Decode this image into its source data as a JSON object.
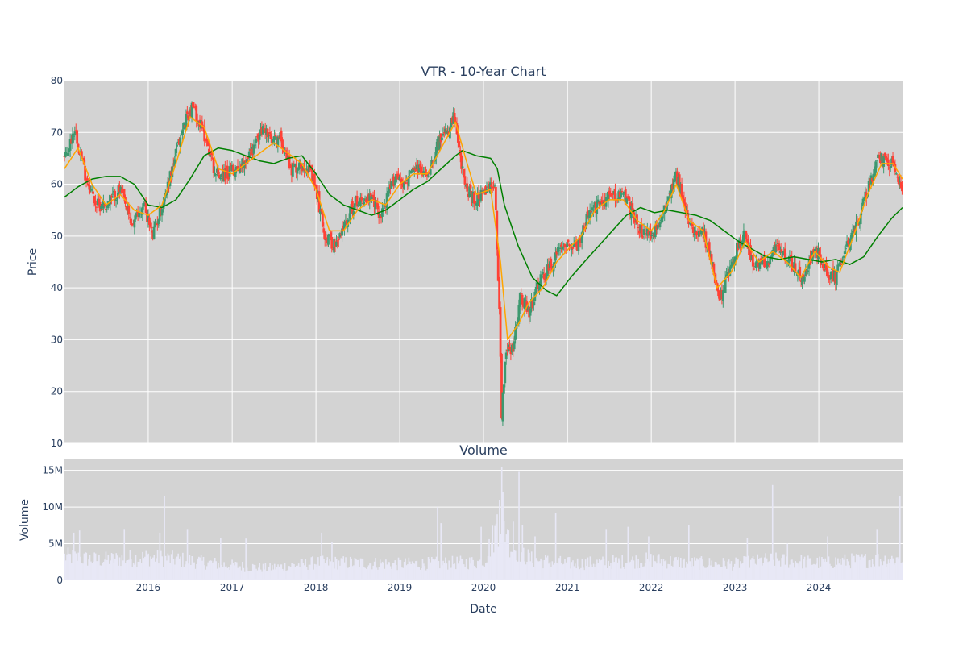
{
  "chart_data": [
    {
      "type": "candlestick",
      "title": "VTR - 10-Year Chart",
      "xlabel": "",
      "ylabel": "Price",
      "ylim": [
        10,
        80
      ],
      "yticks": [
        10,
        20,
        30,
        40,
        50,
        60,
        70,
        80
      ],
      "xlim": [
        "2015-01-01",
        "2024-12-31"
      ],
      "grid": true,
      "plot_bg": "#d3d3d3",
      "colors": {
        "up": "#3d9970",
        "down": "#ff4136",
        "ma_short": "#ffa500",
        "ma_long": "#008000"
      },
      "close_path": [
        [
          "2015-01-05",
          65
        ],
        [
          "2015-02-15",
          71
        ],
        [
          "2015-04-01",
          62
        ],
        [
          "2015-05-20",
          56
        ],
        [
          "2015-07-01",
          56
        ],
        [
          "2015-09-01",
          59
        ],
        [
          "2015-10-20",
          52
        ],
        [
          "2015-12-15",
          56
        ],
        [
          "2016-01-20",
          50
        ],
        [
          "2016-03-15",
          58
        ],
        [
          "2016-05-01",
          66
        ],
        [
          "2016-06-15",
          73
        ],
        [
          "2016-07-15",
          75
        ],
        [
          "2016-08-20",
          71
        ],
        [
          "2016-09-15",
          68
        ],
        [
          "2016-10-20",
          62
        ],
        [
          "2016-12-15",
          62
        ],
        [
          "2017-02-15",
          64
        ],
        [
          "2017-04-01",
          67
        ],
        [
          "2017-05-20",
          71
        ],
        [
          "2017-06-20",
          68
        ],
        [
          "2017-08-01",
          69
        ],
        [
          "2017-09-15",
          63
        ],
        [
          "2017-11-20",
          64
        ],
        [
          "2018-01-01",
          59
        ],
        [
          "2018-02-10",
          50
        ],
        [
          "2018-04-01",
          48
        ],
        [
          "2018-05-20",
          54
        ],
        [
          "2018-07-01",
          57
        ],
        [
          "2018-09-01",
          57
        ],
        [
          "2018-10-10",
          54
        ],
        [
          "2018-12-15",
          62
        ],
        [
          "2019-01-20",
          60
        ],
        [
          "2019-03-15",
          63
        ],
        [
          "2019-05-01",
          62
        ],
        [
          "2019-06-15",
          68
        ],
        [
          "2019-08-01",
          70
        ],
        [
          "2019-08-25",
          73
        ],
        [
          "2019-10-10",
          60
        ],
        [
          "2019-11-20",
          57
        ],
        [
          "2020-01-01",
          58
        ],
        [
          "2020-02-20",
          60
        ],
        [
          "2020-03-10",
          36
        ],
        [
          "2020-03-20",
          16
        ],
        [
          "2020-04-10",
          29
        ],
        [
          "2020-05-10",
          28
        ],
        [
          "2020-06-10",
          39
        ],
        [
          "2020-07-15",
          35
        ],
        [
          "2020-09-01",
          41
        ],
        [
          "2020-11-01",
          45
        ],
        [
          "2020-12-10",
          49
        ],
        [
          "2021-02-15",
          48
        ],
        [
          "2021-04-01",
          54
        ],
        [
          "2021-05-15",
          56
        ],
        [
          "2021-07-15",
          58
        ],
        [
          "2021-09-01",
          58
        ],
        [
          "2021-10-15",
          54
        ],
        [
          "2021-12-01",
          50
        ],
        [
          "2022-02-01",
          51
        ],
        [
          "2022-03-15",
          58
        ],
        [
          "2022-04-20",
          62
        ],
        [
          "2022-06-15",
          52
        ],
        [
          "2022-08-15",
          51
        ],
        [
          "2022-10-01",
          43
        ],
        [
          "2022-10-25",
          37
        ],
        [
          "2022-12-15",
          45
        ],
        [
          "2023-02-15",
          51
        ],
        [
          "2023-03-20",
          44
        ],
        [
          "2023-05-15",
          45
        ],
        [
          "2023-07-15",
          48
        ],
        [
          "2023-09-15",
          44
        ],
        [
          "2023-10-25",
          41
        ],
        [
          "2023-12-15",
          48
        ],
        [
          "2024-02-01",
          43
        ],
        [
          "2024-03-15",
          42
        ],
        [
          "2024-04-15",
          46
        ],
        [
          "2024-06-15",
          52
        ],
        [
          "2024-08-15",
          61
        ],
        [
          "2024-09-20",
          65
        ],
        [
          "2024-11-15",
          64
        ],
        [
          "2024-12-31",
          58
        ]
      ],
      "ma_short_path": [
        [
          "2015-01-01",
          63
        ],
        [
          "2015-03-01",
          67
        ],
        [
          "2015-05-01",
          60
        ],
        [
          "2015-07-01",
          56
        ],
        [
          "2015-09-01",
          58
        ],
        [
          "2015-11-01",
          55
        ],
        [
          "2016-01-01",
          54
        ],
        [
          "2016-03-01",
          56
        ],
        [
          "2016-05-01",
          64
        ],
        [
          "2016-07-01",
          73
        ],
        [
          "2016-09-01",
          71
        ],
        [
          "2016-11-01",
          63
        ],
        [
          "2017-01-01",
          62
        ],
        [
          "2017-03-01",
          64
        ],
        [
          "2017-05-01",
          66
        ],
        [
          "2017-07-01",
          68
        ],
        [
          "2017-09-01",
          66
        ],
        [
          "2017-11-01",
          64
        ],
        [
          "2018-01-01",
          59
        ],
        [
          "2018-03-01",
          51
        ],
        [
          "2018-05-01",
          51
        ],
        [
          "2018-07-01",
          55
        ],
        [
          "2018-09-01",
          57
        ],
        [
          "2018-11-01",
          56
        ],
        [
          "2019-01-01",
          60
        ],
        [
          "2019-03-01",
          62
        ],
        [
          "2019-05-01",
          62
        ],
        [
          "2019-07-01",
          67
        ],
        [
          "2019-09-01",
          72
        ],
        [
          "2019-10-15",
          65
        ],
        [
          "2019-12-01",
          58
        ],
        [
          "2020-02-01",
          59
        ],
        [
          "2020-03-15",
          45
        ],
        [
          "2020-04-15",
          30
        ],
        [
          "2020-06-01",
          33
        ],
        [
          "2020-07-15",
          37
        ],
        [
          "2020-09-15",
          40
        ],
        [
          "2020-11-15",
          45
        ],
        [
          "2021-01-15",
          48
        ],
        [
          "2021-03-01",
          50
        ],
        [
          "2021-05-01",
          55
        ],
        [
          "2021-07-01",
          57
        ],
        [
          "2021-09-01",
          57
        ],
        [
          "2021-11-01",
          53
        ],
        [
          "2022-01-01",
          51
        ],
        [
          "2022-03-01",
          55
        ],
        [
          "2022-04-20",
          60
        ],
        [
          "2022-06-15",
          53
        ],
        [
          "2022-08-15",
          51
        ],
        [
          "2022-10-15",
          40
        ],
        [
          "2022-12-15",
          43
        ],
        [
          "2023-02-15",
          49
        ],
        [
          "2023-04-15",
          45
        ],
        [
          "2023-06-15",
          47
        ],
        [
          "2023-08-15",
          45
        ],
        [
          "2023-10-15",
          42
        ],
        [
          "2023-12-15",
          47
        ],
        [
          "2024-02-15",
          44
        ],
        [
          "2024-04-01",
          43
        ],
        [
          "2024-06-01",
          50
        ],
        [
          "2024-08-01",
          58
        ],
        [
          "2024-10-01",
          64
        ],
        [
          "2024-11-20",
          64
        ],
        [
          "2024-12-31",
          61
        ]
      ],
      "ma_long_path": [
        [
          "2015-01-01",
          57.5
        ],
        [
          "2015-03-01",
          59.5
        ],
        [
          "2015-05-01",
          61
        ],
        [
          "2015-07-01",
          61.5
        ],
        [
          "2015-09-01",
          61.5
        ],
        [
          "2015-11-01",
          60
        ],
        [
          "2016-01-01",
          56
        ],
        [
          "2016-03-01",
          55.5
        ],
        [
          "2016-05-01",
          57
        ],
        [
          "2016-07-01",
          61
        ],
        [
          "2016-09-01",
          65.5
        ],
        [
          "2016-11-01",
          67
        ],
        [
          "2017-01-01",
          66.5
        ],
        [
          "2017-03-01",
          65.5
        ],
        [
          "2017-05-01",
          64.5
        ],
        [
          "2017-07-01",
          64
        ],
        [
          "2017-09-01",
          65
        ],
        [
          "2017-11-01",
          65.5
        ],
        [
          "2018-01-01",
          62
        ],
        [
          "2018-03-01",
          58
        ],
        [
          "2018-05-01",
          56
        ],
        [
          "2018-07-01",
          55
        ],
        [
          "2018-09-01",
          54
        ],
        [
          "2018-11-01",
          55
        ],
        [
          "2019-01-01",
          57
        ],
        [
          "2019-03-01",
          59
        ],
        [
          "2019-05-01",
          60.5
        ],
        [
          "2019-07-01",
          63
        ],
        [
          "2019-09-01",
          65.5
        ],
        [
          "2019-10-01",
          66.5
        ],
        [
          "2019-12-01",
          65.5
        ],
        [
          "2020-02-01",
          65
        ],
        [
          "2020-03-01",
          63
        ],
        [
          "2020-04-01",
          56
        ],
        [
          "2020-06-01",
          48
        ],
        [
          "2020-08-01",
          42
        ],
        [
          "2020-10-01",
          39.5
        ],
        [
          "2020-11-15",
          38.5
        ],
        [
          "2021-01-15",
          42
        ],
        [
          "2021-03-15",
          45
        ],
        [
          "2021-05-15",
          48
        ],
        [
          "2021-07-15",
          51
        ],
        [
          "2021-09-15",
          54
        ],
        [
          "2021-11-15",
          55.5
        ],
        [
          "2022-01-15",
          54.5
        ],
        [
          "2022-03-15",
          55
        ],
        [
          "2022-05-15",
          54.5
        ],
        [
          "2022-07-15",
          54
        ],
        [
          "2022-09-15",
          53
        ],
        [
          "2022-11-15",
          51
        ],
        [
          "2023-01-15",
          49
        ],
        [
          "2023-03-15",
          47.5
        ],
        [
          "2023-05-15",
          46
        ],
        [
          "2023-07-15",
          45.5
        ],
        [
          "2023-09-15",
          46
        ],
        [
          "2023-11-15",
          45.5
        ],
        [
          "2024-01-15",
          45
        ],
        [
          "2024-03-15",
          45.5
        ],
        [
          "2024-05-15",
          44.5
        ],
        [
          "2024-07-15",
          46
        ],
        [
          "2024-09-15",
          50
        ],
        [
          "2024-11-15",
          53.5
        ],
        [
          "2024-12-31",
          55.5
        ]
      ]
    },
    {
      "type": "bar",
      "title": "Volume",
      "xlabel": "Date",
      "ylabel": "Volume",
      "ylim": [
        0,
        16500000
      ],
      "yticks": [
        0,
        5000000,
        10000000,
        15000000
      ],
      "ytick_labels": [
        "0",
        "5M",
        "10M",
        "15M"
      ],
      "xlim": [
        "2015-01-01",
        "2024-12-31"
      ],
      "xticks": [
        "2016",
        "2017",
        "2018",
        "2019",
        "2020",
        "2021",
        "2022",
        "2023",
        "2024"
      ],
      "grid": true,
      "plot_bg": "#d3d3d3",
      "bar_color": "#e8e8f6",
      "baseline_path": [
        [
          "2015-01-01",
          3500000
        ],
        [
          "2015-06-01",
          3000000
        ],
        [
          "2016-01-01",
          3400000
        ],
        [
          "2016-06-01",
          3000000
        ],
        [
          "2017-01-01",
          2200000
        ],
        [
          "2017-06-01",
          1800000
        ],
        [
          "2018-01-01",
          2600000
        ],
        [
          "2018-06-01",
          2600000
        ],
        [
          "2019-01-01",
          2400000
        ],
        [
          "2019-06-01",
          2500000
        ],
        [
          "2020-01-01",
          2700000
        ],
        [
          "2020-03-15",
          9000000
        ],
        [
          "2020-05-01",
          5000000
        ],
        [
          "2020-08-01",
          3000000
        ],
        [
          "2021-01-01",
          2500000
        ],
        [
          "2021-06-01",
          2600000
        ],
        [
          "2022-01-01",
          3000000
        ],
        [
          "2022-06-01",
          2600000
        ],
        [
          "2023-01-01",
          2400000
        ],
        [
          "2023-06-01",
          3000000
        ],
        [
          "2024-01-01",
          2600000
        ],
        [
          "2024-06-01",
          2900000
        ],
        [
          "2024-12-31",
          3200000
        ]
      ],
      "spikes": [
        [
          "2015-02-10",
          6500000
        ],
        [
          "2015-03-05",
          6800000
        ],
        [
          "2015-09-20",
          7000000
        ],
        [
          "2016-02-20",
          6500000
        ],
        [
          "2016-03-10",
          11500000
        ],
        [
          "2016-06-20",
          7000000
        ],
        [
          "2016-11-10",
          5800000
        ],
        [
          "2017-03-01",
          5700000
        ],
        [
          "2018-01-25",
          6500000
        ],
        [
          "2018-03-10",
          5200000
        ],
        [
          "2019-06-15",
          10000000
        ],
        [
          "2019-07-01",
          7800000
        ],
        [
          "2019-12-20",
          7300000
        ],
        [
          "2020-02-28",
          9000000
        ],
        [
          "2020-03-10",
          11000000
        ],
        [
          "2020-03-18",
          15500000
        ],
        [
          "2020-03-25",
          12000000
        ],
        [
          "2020-04-15",
          7000000
        ],
        [
          "2020-05-10",
          8000000
        ],
        [
          "2020-06-05",
          14800000
        ],
        [
          "2020-06-20",
          7500000
        ],
        [
          "2020-08-10",
          6000000
        ],
        [
          "2020-11-10",
          9200000
        ],
        [
          "2021-06-20",
          7000000
        ],
        [
          "2021-09-20",
          7300000
        ],
        [
          "2021-12-20",
          6000000
        ],
        [
          "2022-06-15",
          7500000
        ],
        [
          "2023-02-25",
          5800000
        ],
        [
          "2023-06-15",
          13000000
        ],
        [
          "2023-08-15",
          5000000
        ],
        [
          "2024-02-10",
          6000000
        ],
        [
          "2024-09-10",
          7000000
        ],
        [
          "2024-12-20",
          11500000
        ]
      ]
    }
  ]
}
